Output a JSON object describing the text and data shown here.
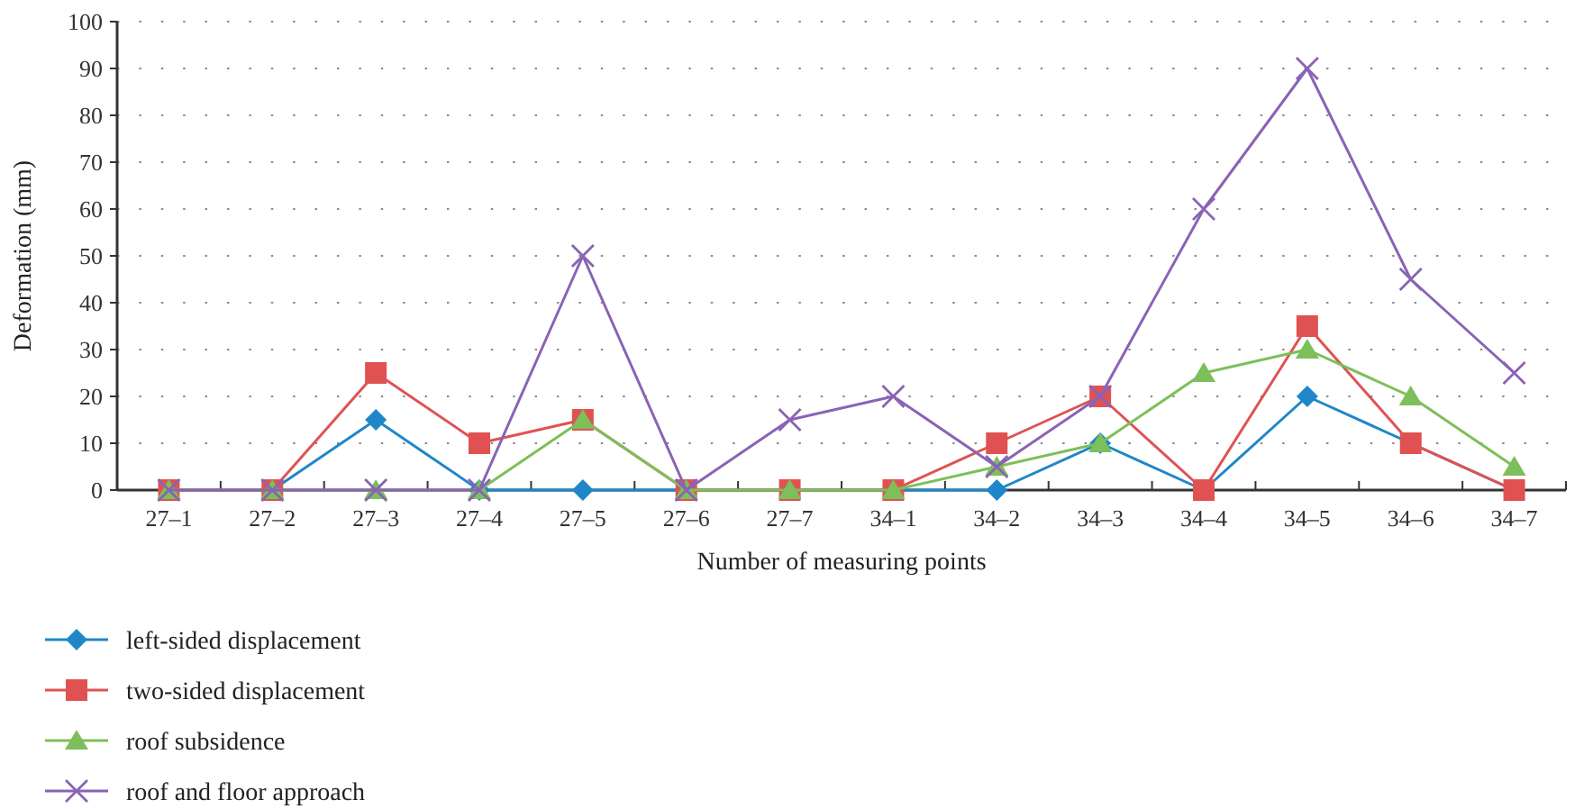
{
  "chart_data": {
    "type": "line",
    "xlabel": "Number of measuring points",
    "ylabel": "Deformation (mm)",
    "categories": [
      "27–1",
      "27–2",
      "27–3",
      "27–4",
      "27–5",
      "27–6",
      "27–7",
      "34–1",
      "34–2",
      "34–3",
      "34–4",
      "34–5",
      "34–6",
      "34–7"
    ],
    "ylim": [
      0,
      100
    ],
    "yticks": [
      0,
      10,
      20,
      30,
      40,
      50,
      60,
      70,
      80,
      90,
      100
    ],
    "grid": "y",
    "legend": "bottom left",
    "series": [
      {
        "name": "left-sided displacement",
        "color": "#1f87c8",
        "marker": "diamond",
        "values": [
          0,
          0,
          15,
          0,
          0,
          0,
          0,
          0,
          0,
          10,
          0,
          20,
          10,
          0
        ]
      },
      {
        "name": "two-sided displacement",
        "color": "#e05252",
        "marker": "square",
        "values": [
          0,
          0,
          25,
          10,
          15,
          0,
          0,
          0,
          10,
          20,
          0,
          35,
          10,
          0
        ]
      },
      {
        "name": "roof subsidence",
        "color": "#7dbf5a",
        "marker": "triangle",
        "values": [
          0,
          0,
          0,
          0,
          15,
          0,
          0,
          0,
          5,
          10,
          25,
          30,
          20,
          5
        ]
      },
      {
        "name": "roof and floor approach",
        "color": "#8a63b5",
        "marker": "cross",
        "values": [
          0,
          0,
          0,
          0,
          50,
          0,
          15,
          20,
          5,
          20,
          60,
          90,
          45,
          25
        ]
      }
    ]
  }
}
